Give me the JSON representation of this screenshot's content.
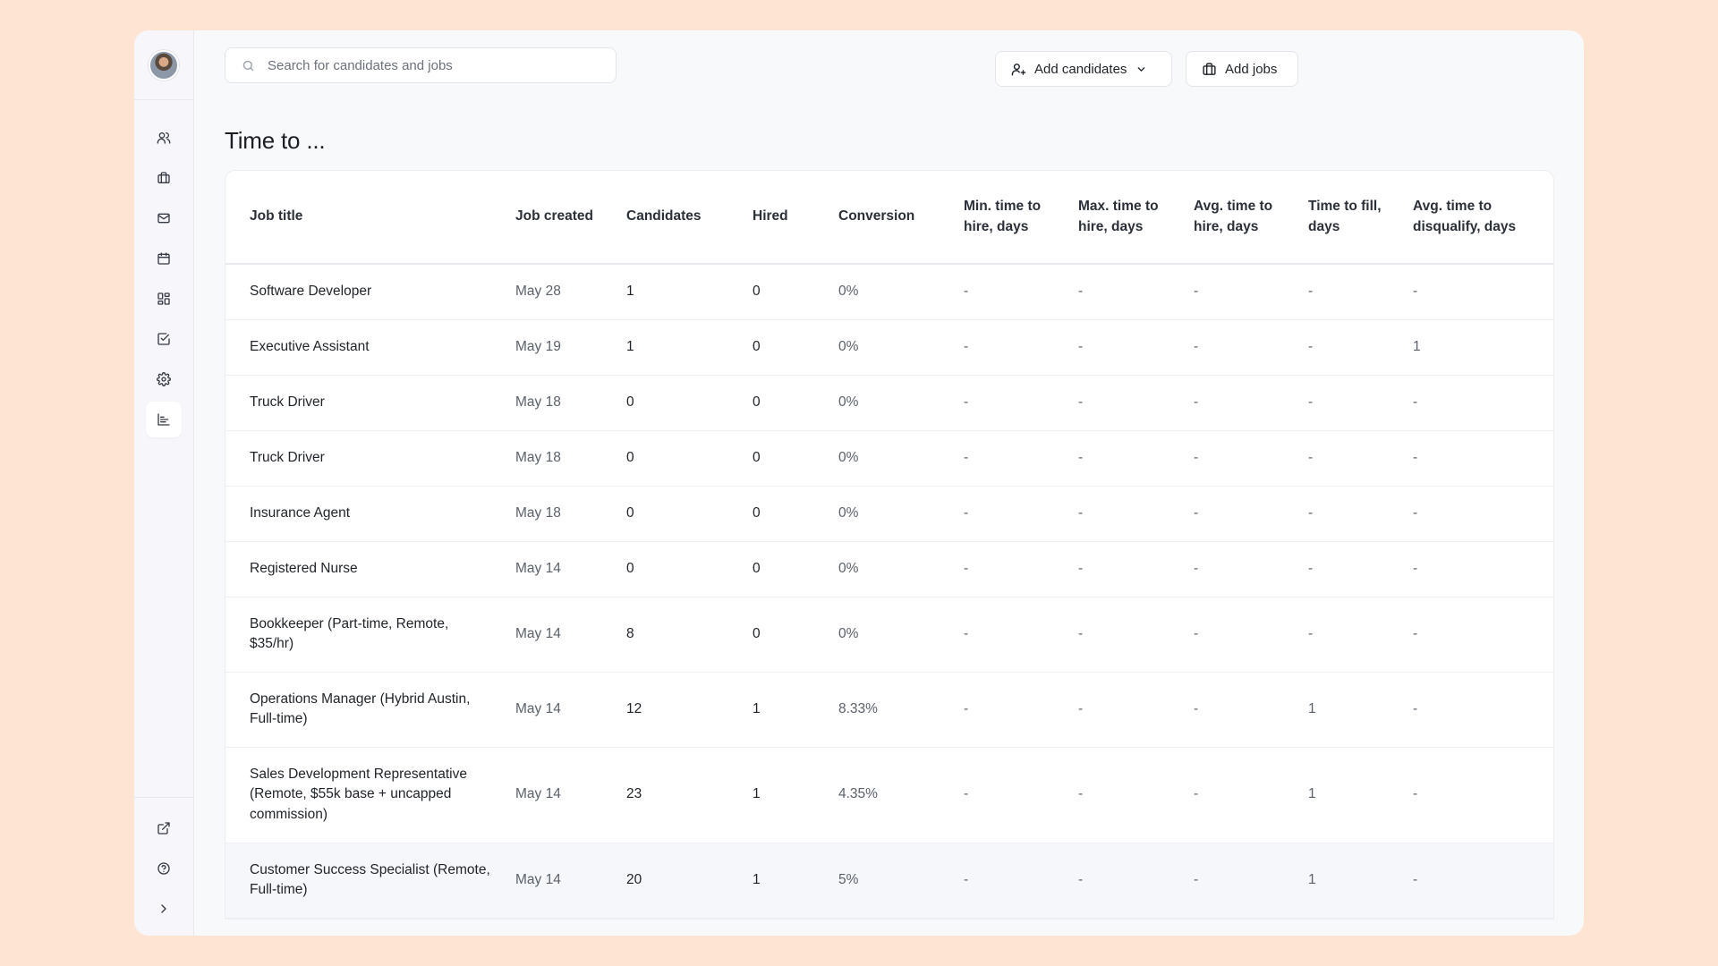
{
  "sidebar": {
    "nav": [
      {
        "icon": "users-icon",
        "label": "Candidates"
      },
      {
        "icon": "briefcase-icon",
        "label": "Jobs"
      },
      {
        "icon": "mail-icon",
        "label": "Inbox"
      },
      {
        "icon": "calendar-icon",
        "label": "Calendar"
      },
      {
        "icon": "grid-icon",
        "label": "Dashboard"
      },
      {
        "icon": "checkbox-icon",
        "label": "Tasks"
      },
      {
        "icon": "gear-icon",
        "label": "Settings"
      },
      {
        "icon": "chart-icon",
        "label": "Reports",
        "active": true
      }
    ],
    "bottom": [
      {
        "icon": "external-link-icon"
      },
      {
        "icon": "help-icon"
      },
      {
        "icon": "chevron-right-icon"
      }
    ]
  },
  "header": {
    "search_placeholder": "Search for candidates and jobs",
    "add_candidates_label": "Add candidates",
    "add_jobs_label": "Add jobs"
  },
  "page": {
    "title": "Time to ..."
  },
  "table": {
    "columns": [
      "Job title",
      "Job created",
      "Candidates",
      "Hired",
      "Conversion",
      "Min. time to hire, days",
      "Max. time to hire, days",
      "Avg. time to hire, days",
      "Time to fill, days",
      "Avg. time to disqualify, days"
    ],
    "rows": [
      {
        "job_title": "Software Developer",
        "created": "May 28",
        "candidates": "1",
        "hired": "0",
        "conversion": "0%",
        "min_hire": "-",
        "max_hire": "-",
        "avg_hire": "-",
        "fill": "-",
        "disqualify": "-"
      },
      {
        "job_title": "Executive Assistant",
        "created": "May 19",
        "candidates": "1",
        "hired": "0",
        "conversion": "0%",
        "min_hire": "-",
        "max_hire": "-",
        "avg_hire": "-",
        "fill": "-",
        "disqualify": "1"
      },
      {
        "job_title": "Truck Driver",
        "created": "May 18",
        "candidates": "0",
        "hired": "0",
        "conversion": "0%",
        "min_hire": "-",
        "max_hire": "-",
        "avg_hire": "-",
        "fill": "-",
        "disqualify": "-"
      },
      {
        "job_title": "Truck Driver",
        "created": "May 18",
        "candidates": "0",
        "hired": "0",
        "conversion": "0%",
        "min_hire": "-",
        "max_hire": "-",
        "avg_hire": "-",
        "fill": "-",
        "disqualify": "-"
      },
      {
        "job_title": "Insurance Agent",
        "created": "May 18",
        "candidates": "0",
        "hired": "0",
        "conversion": "0%",
        "min_hire": "-",
        "max_hire": "-",
        "avg_hire": "-",
        "fill": "-",
        "disqualify": "-"
      },
      {
        "job_title": "Registered Nurse",
        "created": "May 14",
        "candidates": "0",
        "hired": "0",
        "conversion": "0%",
        "min_hire": "-",
        "max_hire": "-",
        "avg_hire": "-",
        "fill": "-",
        "disqualify": "-"
      },
      {
        "job_title": "Bookkeeper (Part-time, Remote, $35/hr)",
        "created": "May 14",
        "candidates": "8",
        "hired": "0",
        "conversion": "0%",
        "min_hire": "-",
        "max_hire": "-",
        "avg_hire": "-",
        "fill": "-",
        "disqualify": "-"
      },
      {
        "job_title": "Operations Manager (Hybrid Austin, Full-time)",
        "created": "May 14",
        "candidates": "12",
        "hired": "1",
        "conversion": "8.33%",
        "min_hire": "-",
        "max_hire": "-",
        "avg_hire": "-",
        "fill": "1",
        "disqualify": "-"
      },
      {
        "job_title": "Sales Development Representative (Remote, $55k base + uncapped commission)",
        "created": "May 14",
        "candidates": "23",
        "hired": "1",
        "conversion": "4.35%",
        "min_hire": "-",
        "max_hire": "-",
        "avg_hire": "-",
        "fill": "1",
        "disqualify": "-"
      },
      {
        "job_title": "Customer Success Specialist (Remote, Full-time)",
        "created": "May 14",
        "candidates": "20",
        "hired": "1",
        "conversion": "5%",
        "min_hire": "-",
        "max_hire": "-",
        "avg_hire": "-",
        "fill": "1",
        "disqualify": "-"
      }
    ]
  }
}
